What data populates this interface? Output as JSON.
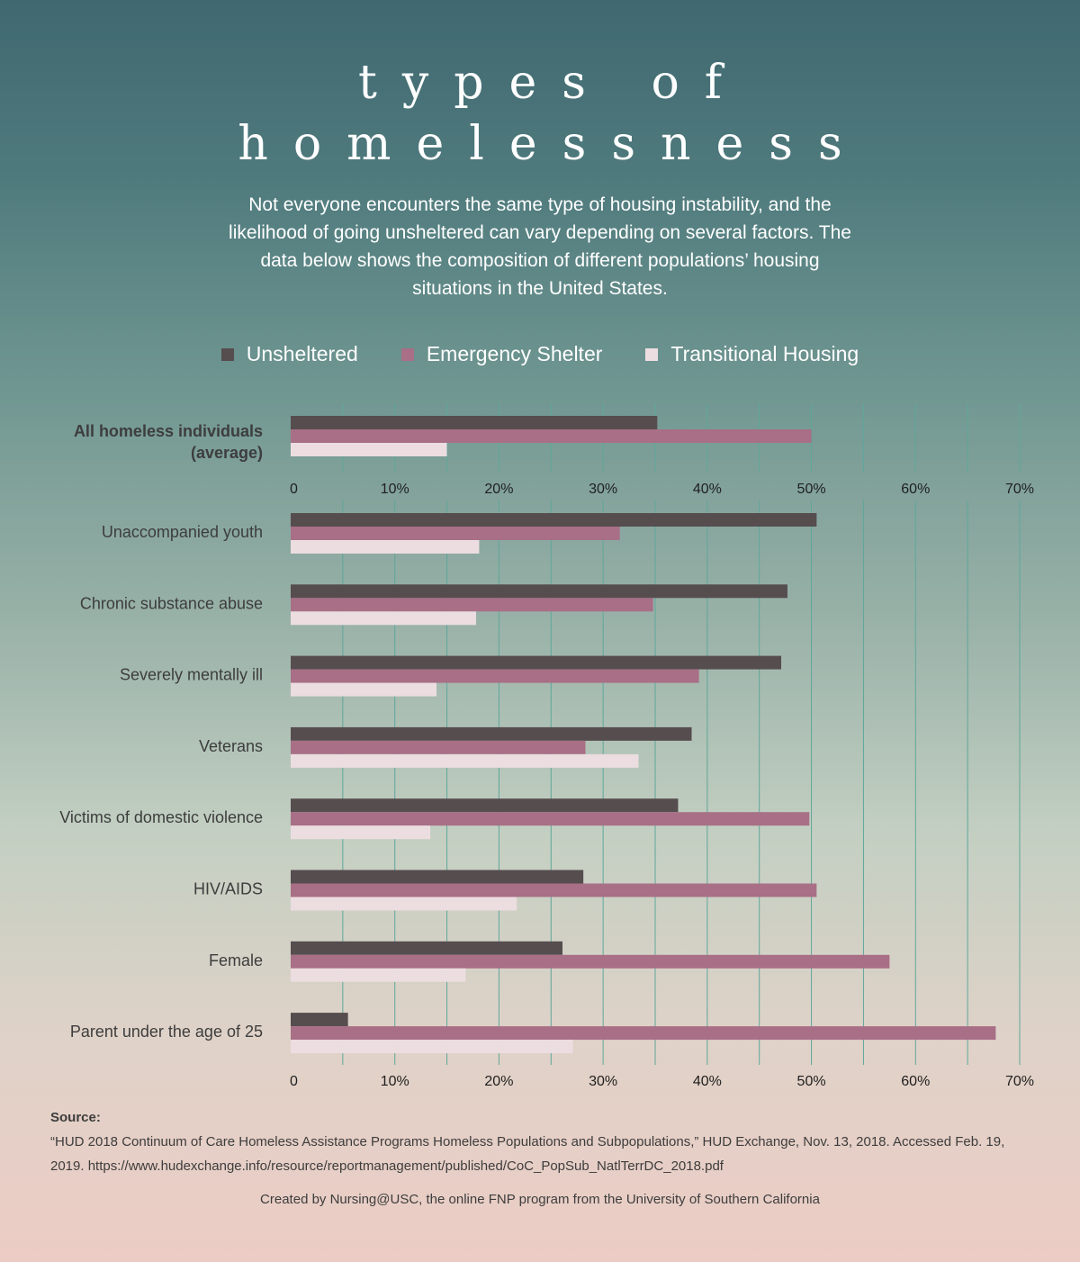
{
  "title_lines": [
    "types of",
    "homelessness"
  ],
  "subtitle": "Not everyone encounters the same type of housing instability, and the likelihood of going unsheltered can vary depending on several factors. The data below shows the composition of different populations’ housing situations in the United States.",
  "colors": {
    "unsheltered": "#564d4f",
    "emergency_shelter": "#a86f86",
    "transitional_housing": "#ecdde0",
    "gridline": "#5fa79a"
  },
  "chart_data": {
    "type": "bar",
    "orientation": "horizontal",
    "xlim": [
      0,
      70
    ],
    "ticks": [
      "0",
      "10%",
      "20%",
      "30%",
      "40%",
      "50%",
      "60%",
      "70%"
    ],
    "tick_values": [
      0,
      10,
      20,
      30,
      40,
      50,
      60,
      70
    ],
    "grid": true,
    "legend_position": "top",
    "average": {
      "category": "All homeless individuals (average)",
      "category_lines": [
        "All homeless individuals",
        "(average)"
      ],
      "values": [
        35.2,
        50.0,
        15.0
      ]
    },
    "categories": [
      "Unaccompanied youth",
      "Chronic substance abuse",
      "Severely mentally ill",
      "Veterans",
      "Victims of domestic violence",
      "HIV/AIDS",
      "Female",
      "Parent under the age of 25"
    ],
    "series": [
      {
        "name": "Unsheltered",
        "color": "#564d4f",
        "values": [
          50.5,
          47.7,
          47.1,
          38.5,
          37.2,
          28.1,
          26.1,
          5.5
        ]
      },
      {
        "name": "Emergency Shelter",
        "color": "#a86f86",
        "values": [
          31.6,
          34.8,
          39.2,
          28.3,
          49.8,
          50.5,
          57.5,
          67.7
        ]
      },
      {
        "name": "Transitional Housing",
        "color": "#ecdde0",
        "values": [
          18.1,
          17.8,
          14.0,
          33.4,
          13.4,
          21.7,
          16.8,
          27.1
        ]
      }
    ]
  },
  "source": {
    "label": "Source:",
    "text": "“HUD 2018 Continuum of Care Homeless Assistance Programs Homeless Populations and Subpopulations,” HUD Exchange, Nov. 13, 2018. Accessed Feb. 19, 2019. https://www.hudexchange.info/resource/reportmanagement/published/CoC_PopSub_NatlTerrDC_2018.pdf"
  },
  "credit": "Created by Nursing@USC, the online FNP program from the University of Southern California"
}
